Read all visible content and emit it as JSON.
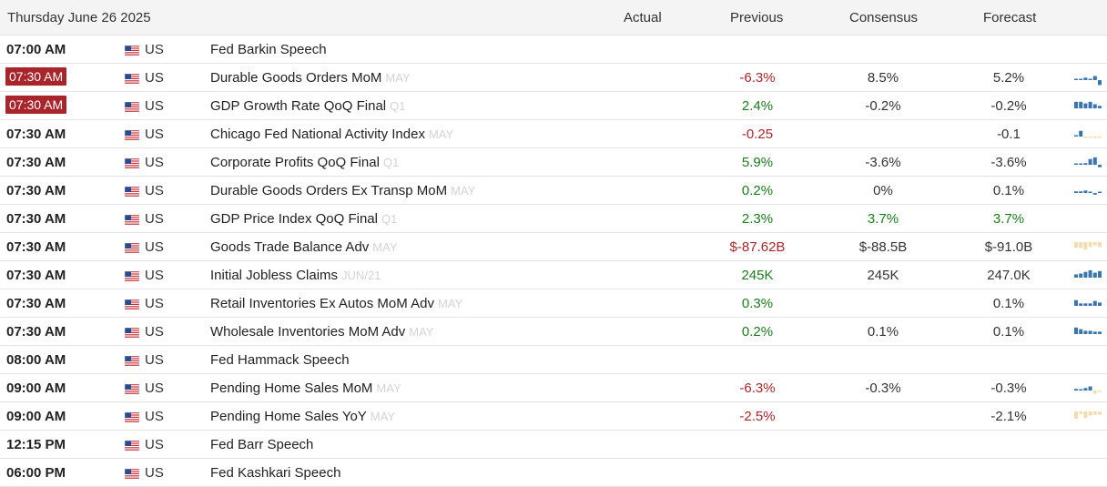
{
  "header": {
    "date": "Thursday June 26 2025",
    "col_actual": "Actual",
    "col_previous": "Previous",
    "col_consensus": "Consensus",
    "col_forecast": "Forecast"
  },
  "colors": {
    "negative": "#a8262b",
    "positive": "#1e7a1e",
    "badge": "#a8262b",
    "spark_blue": "#3a76ad",
    "spark_tan": "#f2ddb0"
  },
  "rows": [
    {
      "time": "07:00 AM",
      "badge": false,
      "country": "US",
      "event": "Fed Barkin Speech",
      "ref": "",
      "actual": "",
      "previous": "",
      "previous_color": "neu",
      "consensus": "",
      "consensus_color": "neu",
      "forecast": "",
      "forecast_color": "neu",
      "spark": {
        "color": "none",
        "values": []
      }
    },
    {
      "time": "07:30 AM",
      "badge": true,
      "country": "US",
      "event": "Durable Goods Orders MoM",
      "ref": "MAY",
      "actual": "",
      "previous": "-6.3%",
      "previous_color": "neg",
      "consensus": "8.5%",
      "consensus_color": "neu",
      "forecast": "5.2%",
      "forecast_color": "neu",
      "spark": {
        "color": "blue",
        "values": [
          0.1,
          0.15,
          0.3,
          0.1,
          0.5,
          -0.6
        ]
      }
    },
    {
      "time": "07:30 AM",
      "badge": true,
      "country": "US",
      "event": "GDP Growth Rate QoQ Final",
      "ref": "Q1",
      "actual": "",
      "previous": "2.4%",
      "previous_color": "pos",
      "consensus": "-0.2%",
      "consensus_color": "neu",
      "forecast": "-0.2%",
      "forecast_color": "neu",
      "spark": {
        "color": "blue",
        "values": [
          0.8,
          0.8,
          0.6,
          0.8,
          0.5,
          0.3
        ]
      }
    },
    {
      "time": "07:30 AM",
      "badge": false,
      "country": "US",
      "event": "Chicago Fed National Activity Index",
      "ref": "MAY",
      "actual": "",
      "previous": "-0.25",
      "previous_color": "neg",
      "consensus": "",
      "consensus_color": "neu",
      "forecast": "-0.1",
      "forecast_color": "neu",
      "spark": {
        "color": "mixed",
        "values": [
          0.1,
          0.7,
          -0.2,
          -0.1,
          -0.2,
          -0.1
        ]
      }
    },
    {
      "time": "07:30 AM",
      "badge": false,
      "country": "US",
      "event": "Corporate Profits QoQ Final",
      "ref": "Q1",
      "actual": "",
      "previous": "5.9%",
      "previous_color": "pos",
      "consensus": "-3.6%",
      "consensus_color": "neu",
      "forecast": "-3.6%",
      "forecast_color": "neu",
      "spark": {
        "color": "blue",
        "values": [
          0.1,
          0.15,
          0.2,
          0.7,
          0.9,
          -0.3
        ]
      }
    },
    {
      "time": "07:30 AM",
      "badge": false,
      "country": "US",
      "event": "Durable Goods Orders Ex Transp MoM",
      "ref": "MAY",
      "actual": "",
      "previous": "0.2%",
      "previous_color": "pos",
      "consensus": "0%",
      "consensus_color": "neu",
      "forecast": "0.1%",
      "forecast_color": "neu",
      "spark": {
        "color": "blue",
        "values": [
          0.2,
          0.2,
          0.3,
          0.15,
          -0.2,
          0.15
        ]
      }
    },
    {
      "time": "07:30 AM",
      "badge": false,
      "country": "US",
      "event": "GDP Price Index QoQ Final",
      "ref": "Q1",
      "actual": "",
      "previous": "2.3%",
      "previous_color": "pos",
      "consensus": "3.7%",
      "consensus_color": "pos",
      "forecast": "3.7%",
      "forecast_color": "pos",
      "spark": {
        "color": "none",
        "values": []
      }
    },
    {
      "time": "07:30 AM",
      "badge": false,
      "country": "US",
      "event": "Goods Trade Balance Adv",
      "ref": "MAY",
      "actual": "",
      "previous": "$-87.62B",
      "previous_color": "neg",
      "consensus": "$-88.5B",
      "consensus_color": "neu",
      "forecast": "$-91.0B",
      "forecast_color": "neu",
      "spark": {
        "color": "tan",
        "values": [
          -0.7,
          -0.7,
          -0.9,
          -0.6,
          -0.4,
          -0.6
        ]
      }
    },
    {
      "time": "07:30 AM",
      "badge": false,
      "country": "US",
      "event": "Initial Jobless Claims",
      "ref": "JUN/21",
      "actual": "",
      "previous": "245K",
      "previous_color": "pos",
      "consensus": "245K",
      "consensus_color": "neu",
      "forecast": "247.0K",
      "forecast_color": "neu",
      "spark": {
        "color": "blue",
        "values": [
          0.4,
          0.5,
          0.7,
          0.9,
          0.6,
          0.8
        ]
      }
    },
    {
      "time": "07:30 AM",
      "badge": false,
      "country": "US",
      "event": "Retail Inventories Ex Autos MoM Adv",
      "ref": "MAY",
      "actual": "",
      "previous": "0.3%",
      "previous_color": "pos",
      "consensus": "",
      "consensus_color": "neu",
      "forecast": "0.1%",
      "forecast_color": "neu",
      "spark": {
        "color": "blue",
        "values": [
          0.7,
          0.3,
          0.3,
          0.3,
          0.6,
          0.4
        ]
      }
    },
    {
      "time": "07:30 AM",
      "badge": false,
      "country": "US",
      "event": "Wholesale Inventories MoM Adv",
      "ref": "MAY",
      "actual": "",
      "previous": "0.2%",
      "previous_color": "pos",
      "consensus": "0.1%",
      "consensus_color": "neu",
      "forecast": "0.1%",
      "forecast_color": "neu",
      "spark": {
        "color": "blue",
        "values": [
          0.8,
          0.6,
          0.4,
          0.4,
          0.3,
          0.3
        ]
      }
    },
    {
      "time": "08:00 AM",
      "badge": false,
      "country": "US",
      "event": "Fed Hammack Speech",
      "ref": "",
      "actual": "",
      "previous": "",
      "previous_color": "neu",
      "consensus": "",
      "consensus_color": "neu",
      "forecast": "",
      "forecast_color": "neu",
      "spark": {
        "color": "none",
        "values": []
      }
    },
    {
      "time": "09:00 AM",
      "badge": false,
      "country": "US",
      "event": "Pending Home Sales MoM",
      "ref": "MAY",
      "actual": "",
      "previous": "-6.3%",
      "previous_color": "neg",
      "consensus": "-0.3%",
      "consensus_color": "neu",
      "forecast": "-0.3%",
      "forecast_color": "neu",
      "spark": {
        "color": "mixed",
        "values": [
          0.2,
          0.1,
          0.3,
          0.5,
          -0.4,
          -0.1
        ]
      }
    },
    {
      "time": "09:00 AM",
      "badge": false,
      "country": "US",
      "event": "Pending Home Sales YoY",
      "ref": "MAY",
      "actual": "",
      "previous": "-2.5%",
      "previous_color": "neg",
      "consensus": "",
      "consensus_color": "neu",
      "forecast": "-2.1%",
      "forecast_color": "neu",
      "spark": {
        "color": "tan",
        "values": [
          -0.9,
          -0.3,
          -0.8,
          -0.5,
          -0.4,
          -0.4
        ]
      }
    },
    {
      "time": "12:15 PM",
      "badge": false,
      "country": "US",
      "event": "Fed Barr Speech",
      "ref": "",
      "actual": "",
      "previous": "",
      "previous_color": "neu",
      "consensus": "",
      "consensus_color": "neu",
      "forecast": "",
      "forecast_color": "neu",
      "spark": {
        "color": "none",
        "values": []
      }
    },
    {
      "time": "06:00 PM",
      "badge": false,
      "country": "US",
      "event": "Fed Kashkari Speech",
      "ref": "",
      "actual": "",
      "previous": "",
      "previous_color": "neu",
      "consensus": "",
      "consensus_color": "neu",
      "forecast": "",
      "forecast_color": "neu",
      "spark": {
        "color": "none",
        "values": []
      }
    }
  ]
}
